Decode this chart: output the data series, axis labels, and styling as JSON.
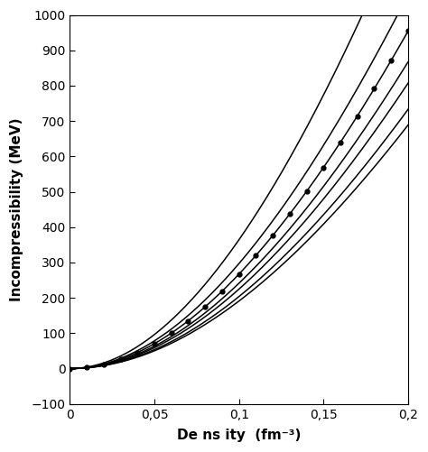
{
  "title": "",
  "xlabel": "De ns ity  (fm⁻³)",
  "ylabel": "Incompressibility (MeV)",
  "xlim": [
    0,
    0.2
  ],
  "ylim": [
    -100,
    1000
  ],
  "xticks": [
    0,
    0.05,
    0.1,
    0.15,
    0.2
  ],
  "yticks": [
    -100,
    0,
    100,
    200,
    300,
    400,
    500,
    600,
    700,
    800,
    900,
    1000
  ],
  "background_color": "#ffffff",
  "line_color": "#000000",
  "curves": [
    {
      "K0": 870,
      "rho0": 0.16,
      "Q": -500,
      "has_markers": false
    },
    {
      "K0": 710,
      "rho0": 0.16,
      "Q": -400,
      "has_markers": false
    },
    {
      "K0": 640,
      "rho0": 0.16,
      "Q": -350,
      "has_markers": true
    },
    {
      "K0": 580,
      "rho0": 0.16,
      "Q": -300,
      "has_markers": false
    },
    {
      "K0": 540,
      "rho0": 0.16,
      "Q": -280,
      "has_markers": false
    },
    {
      "K0": 490,
      "rho0": 0.16,
      "Q": -250,
      "has_markers": false
    },
    {
      "K0": 460,
      "rho0": 0.16,
      "Q": -230,
      "has_markers": false
    }
  ],
  "marker_rhos": [
    0.0,
    0.01,
    0.02,
    0.03,
    0.04,
    0.05,
    0.06,
    0.07,
    0.08,
    0.09,
    0.1,
    0.11,
    0.12,
    0.13,
    0.14,
    0.15,
    0.16,
    0.17,
    0.18,
    0.19,
    0.2
  ]
}
